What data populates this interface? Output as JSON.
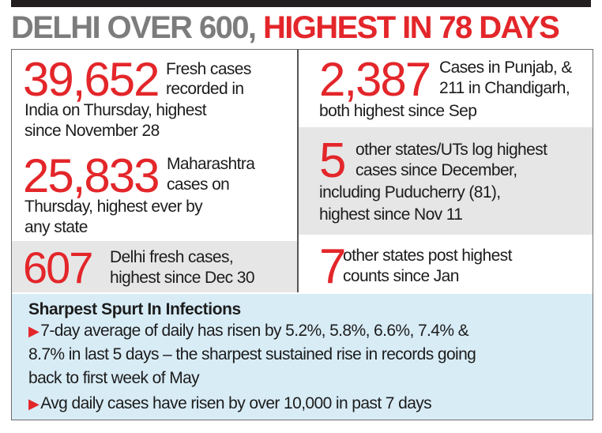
{
  "headline": {
    "part1": "DELHI OVER 600,",
    "part2": " HIGHEST IN 78 DAYS"
  },
  "stats": {
    "india": {
      "number": "39,652",
      "line1": "Fresh cases",
      "line2": "recorded in",
      "line3": "India on Thursday, highest",
      "line4": "since November 28"
    },
    "punjab": {
      "number": "2,387",
      "line1": "Cases in Punjab, &",
      "line2": "211 in Chandigarh,",
      "line3": "both highest since Sep"
    },
    "maharashtra": {
      "number": "25,833",
      "line1": "Maharashtra",
      "line2": "cases on",
      "line3": "Thursday, highest ever by",
      "line4": "any state"
    },
    "five_states": {
      "number": "5",
      "line1": "other states/UTs log highest",
      "line2": "cases since December,",
      "line3": "including Puducherry (81),",
      "line4": "highest since Nov 11"
    },
    "delhi": {
      "number": "607",
      "line1": "Delhi fresh cases,",
      "line2": "highest since Dec 30"
    },
    "seven_states": {
      "number": "7",
      "line1": "other states post highest",
      "line2": "counts since Jan"
    }
  },
  "spurt": {
    "title": "Sharpest Spurt In Infections",
    "bullet1_line1": "7-day average of daily has risen by 5.2%, 5.8%, 6.6%, 7.4% &",
    "bullet1_line2": "8.7% in last 5 days – the sharpest sustained rise in records going",
    "bullet1_line3": "back to first week of May",
    "bullet2": "Avg daily cases have risen by over 10,000 in past 7 days"
  },
  "icons": {
    "bullet": "red-triangle-bullet-icon"
  },
  "colors": {
    "accent_red": "#e3262a",
    "headline_grey": "#7c7c7c",
    "info_blue": "#d8ecf6",
    "shade_grey": "#e6e6e6"
  }
}
